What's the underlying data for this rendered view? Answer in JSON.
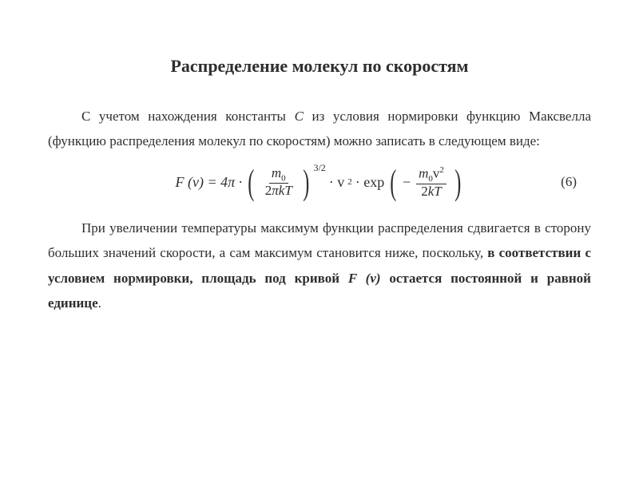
{
  "title": "Распределение молекул по скоростям",
  "para1_a": "С учетом нахождения константы ",
  "para1_const": "C",
  "para1_b": " из условия нормировки функцию Максвелла (функцию распределения молекул по скоростям)  можно записать в следующем виде:",
  "equation": {
    "lhs": "F (v) = 4π ·",
    "frac1_num_a": "m",
    "frac1_num_sub": "0",
    "frac1_den": "2πkT",
    "exp32": "3/2",
    "mid": " · v",
    "sq": "2",
    "exp_label": " · exp",
    "minus": " −",
    "frac2_num_a": "m",
    "frac2_num_sub": "0",
    "frac2_num_b": "v",
    "frac2_num_sq": "2",
    "frac2_den": "2kT",
    "number": "(6)"
  },
  "para2_a": "При увеличении температуры максимум функции распределения сдвигается в сторону больших значений скорости, а сам максимум становится ниже, поскольку, ",
  "para2_bold": "в соответствии с условием нормировки, площадь под кривой ",
  "para2_Fv": "F (v)",
  "para2_b": " остается постоянной и равной ",
  "para2_unit": "единице",
  "para2_dot": "."
}
